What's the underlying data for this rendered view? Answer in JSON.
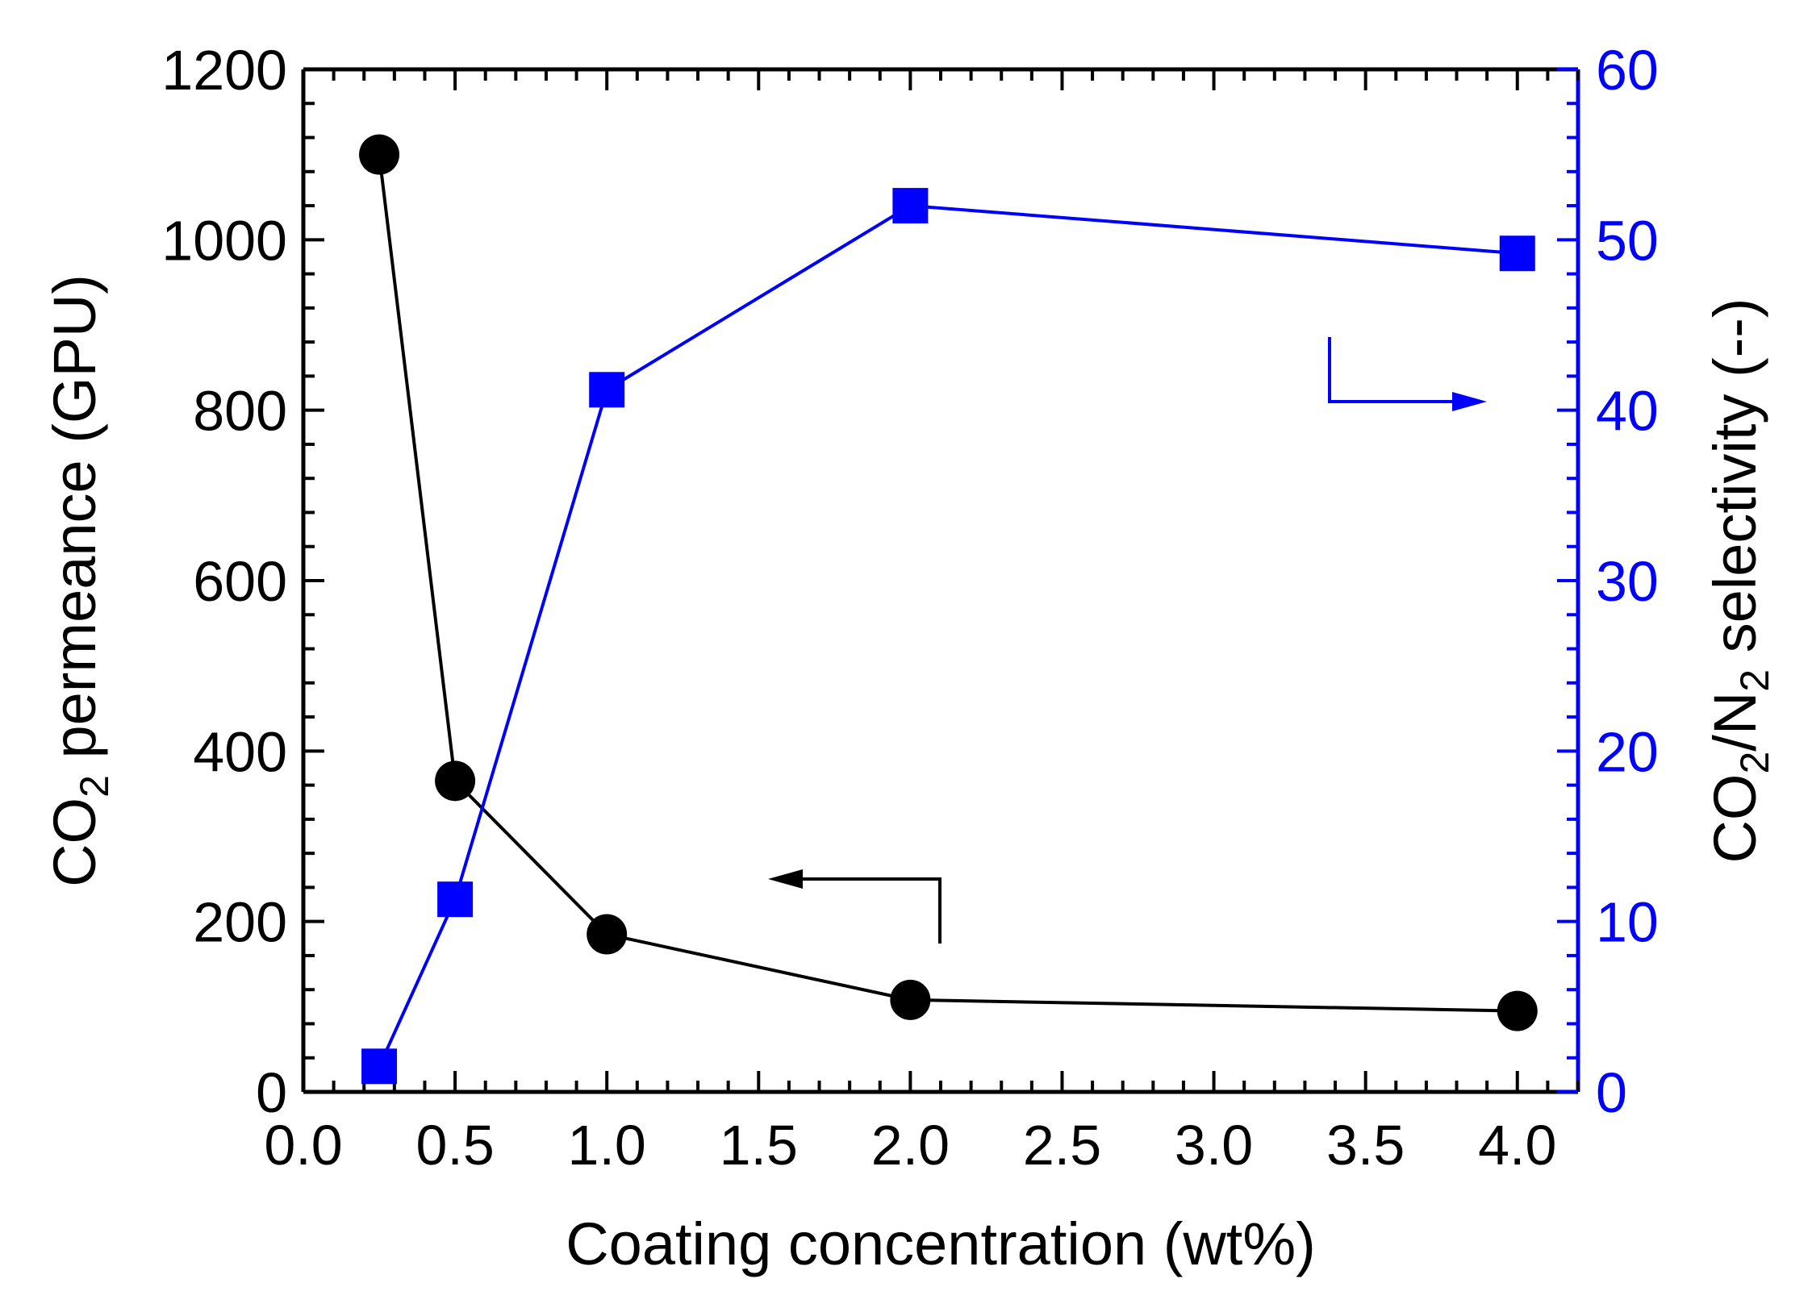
{
  "chart_data": {
    "type": "line",
    "xlabel": "Coating concentration (wt%)",
    "xlim": [
      0.0,
      4.2
    ],
    "xticks": [
      "0.0",
      "0.5",
      "1.0",
      "1.5",
      "2.0",
      "2.5",
      "3.0",
      "3.5",
      "4.0"
    ],
    "y_left": {
      "label_parts": [
        "CO",
        "2",
        " permeance (GPU)"
      ],
      "ylim": [
        0,
        1200
      ],
      "ticks": [
        "0",
        "200",
        "400",
        "600",
        "800",
        "1000",
        "1200"
      ],
      "color": "#000000"
    },
    "y_right": {
      "label_parts": [
        "CO",
        "2",
        "/N",
        "2",
        " selectivity (--)"
      ],
      "ylim": [
        0,
        60
      ],
      "ticks": [
        "0",
        "10",
        "20",
        "30",
        "40",
        "50",
        "60"
      ],
      "color": "#0000ff"
    },
    "series": [
      {
        "axis": "left",
        "marker": "circle",
        "color": "#000000",
        "x": [
          0.25,
          0.5,
          1.0,
          2.0,
          4.0
        ],
        "values": [
          1100,
          365,
          185,
          108,
          95
        ]
      },
      {
        "axis": "right",
        "marker": "square",
        "color": "#0000ff",
        "x": [
          0.25,
          0.5,
          1.0,
          2.0,
          4.0
        ],
        "values": [
          1.5,
          11.3,
          41.2,
          52.0,
          49.2
        ]
      }
    ],
    "annotations": [
      {
        "type": "arrow",
        "direction": "left",
        "points_to_axis": "left",
        "color": "#000000"
      },
      {
        "type": "arrow",
        "direction": "right",
        "points_to_axis": "right",
        "color": "#0000ff"
      }
    ],
    "grid": false
  }
}
